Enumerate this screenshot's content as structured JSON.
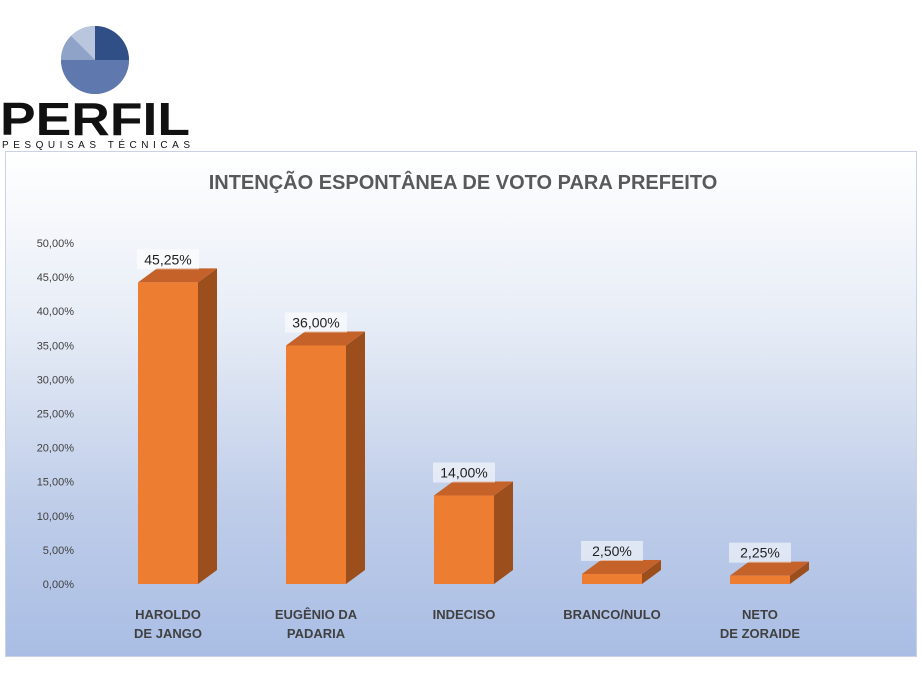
{
  "brand": {
    "name": "PERFIL",
    "tagline": "PESQUISAS TÉCNICAS"
  },
  "colors": {
    "bar_front": "#ED7D31",
    "bar_side": "#9C4E1D",
    "bar_top": "#C4622A",
    "logo_dark": "#2f4f86",
    "logo_light": "#9aaccb"
  },
  "chart_data": {
    "type": "bar",
    "title": "INTENÇÃO ESPONTÂNEA DE VOTO PARA PREFEITO",
    "categories": [
      [
        "HAROLDO",
        "DE JANGO"
      ],
      [
        "EUGÊNIO DA",
        "PADARIA"
      ],
      [
        "INDECISO"
      ],
      [
        "BRANCO/NULO"
      ],
      [
        "NETO",
        "DE ZORAIDE"
      ]
    ],
    "values": [
      45.25,
      36.0,
      14.0,
      2.5,
      2.25
    ],
    "data_labels": [
      "45,25%",
      "36,00%",
      "14,00%",
      "2,50%",
      "2,25%"
    ],
    "yticks": [
      "0,00%",
      "5,00%",
      "10,00%",
      "15,00%",
      "20,00%",
      "25,00%",
      "30,00%",
      "35,00%",
      "40,00%",
      "45,00%",
      "50,00%"
    ],
    "ylim": [
      0,
      50
    ],
    "grid": false,
    "legend": "none",
    "style": "3d-column"
  }
}
